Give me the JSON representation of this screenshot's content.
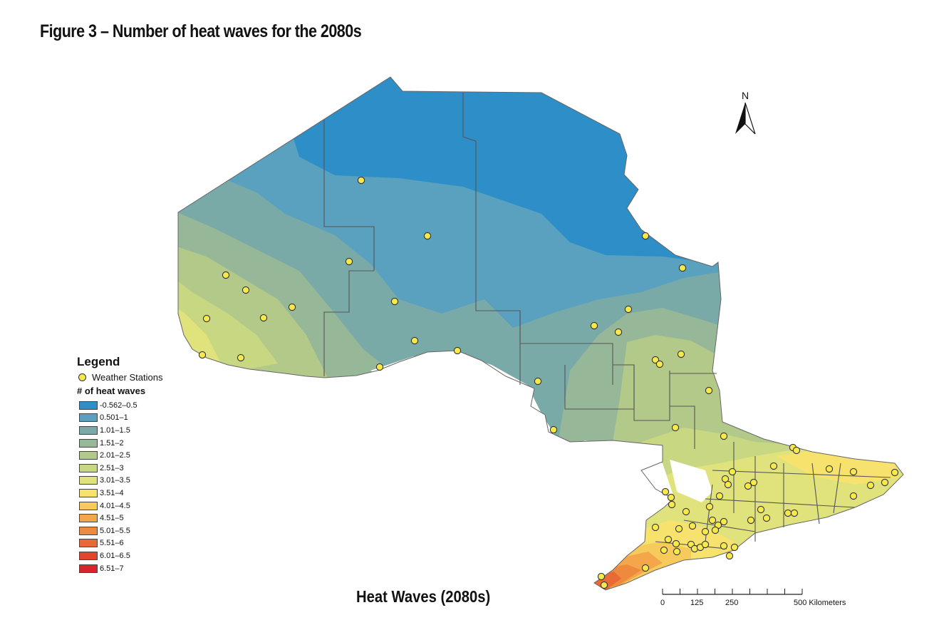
{
  "figure_title": "Figure 3 – Number of heat waves for the 2080s",
  "map_caption": "Heat Waves (2080s)",
  "north_label": "N",
  "legend": {
    "title": "Legend",
    "stations_label": "Weather Stations",
    "heat_waves_title": "# of heat waves",
    "classes": [
      {
        "label": "-0.562–0.5",
        "color": "#2e8fc8"
      },
      {
        "label": "0.501–1",
        "color": "#5aa0bf"
      },
      {
        "label": "1.01–1.5",
        "color": "#7aaaa8"
      },
      {
        "label": "1.51–2",
        "color": "#96b898"
      },
      {
        "label": "2.01–2.5",
        "color": "#b2c98a"
      },
      {
        "label": "2.51–3",
        "color": "#c8d882"
      },
      {
        "label": "3.01–3.5",
        "color": "#e0e37c"
      },
      {
        "label": "3.51–4",
        "color": "#f6e26c"
      },
      {
        "label": "4.01–4.5",
        "color": "#f7ca5c"
      },
      {
        "label": "4.51–5",
        "color": "#f3a64a"
      },
      {
        "label": "5.01–5.5",
        "color": "#ee8a3e"
      },
      {
        "label": "5.51–6",
        "color": "#e86a34"
      },
      {
        "label": "6.01–6.5",
        "color": "#e2452e"
      },
      {
        "label": "6.51–7",
        "color": "#d4262c"
      }
    ]
  },
  "scale_bar": {
    "labels": [
      "0",
      "125",
      "250",
      "500 Kilometers"
    ],
    "values_km": [
      0,
      125,
      250,
      500
    ]
  },
  "colors": {
    "station_fill": "#f7e84b",
    "station_stroke": "#333333",
    "boundary": "#555555",
    "lake": "#ffffff"
  }
}
